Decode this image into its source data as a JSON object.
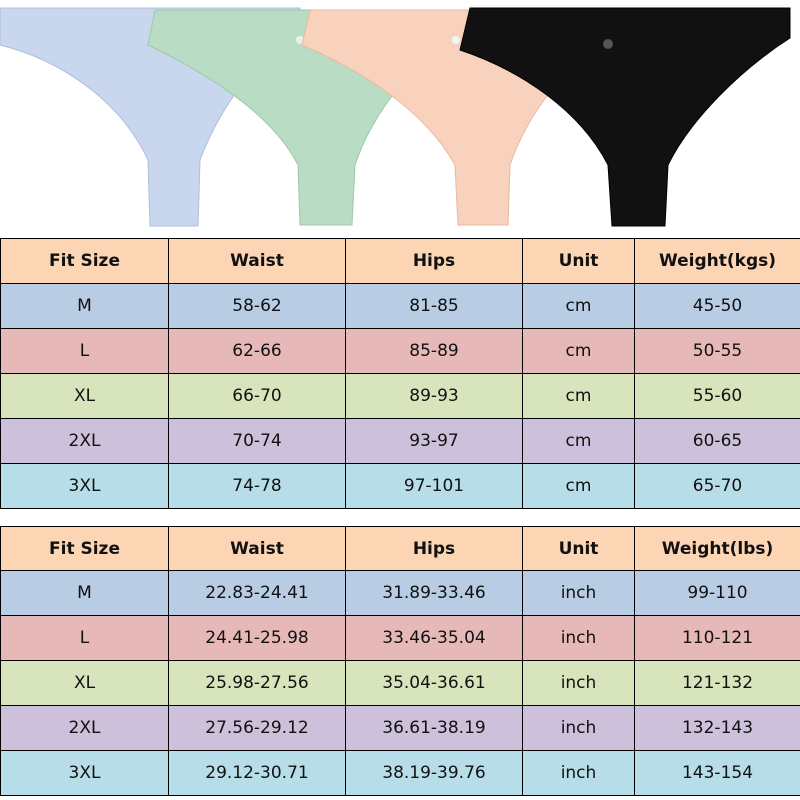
{
  "products": {
    "colors": [
      "#c8d6ee",
      "#b9dcc4",
      "#f9d2bd",
      "#111111"
    ],
    "icon": "underwear-image"
  },
  "tables": [
    {
      "headers": [
        "Fit Size",
        "Waist",
        "Hips",
        "Unit",
        "Weight(kgs)"
      ],
      "rows": [
        [
          "M",
          "58-62",
          "81-85",
          "cm",
          "45-50"
        ],
        [
          "L",
          "62-66",
          "85-89",
          "cm",
          "50-55"
        ],
        [
          "XL",
          "66-70",
          "89-93",
          "cm",
          "55-60"
        ],
        [
          "2XL",
          "70-74",
          "93-97",
          "cm",
          "60-65"
        ],
        [
          "3XL",
          "74-78",
          "97-101",
          "cm",
          "65-70"
        ]
      ]
    },
    {
      "headers": [
        "Fit Size",
        "Waist",
        "Hips",
        "Unit",
        "Weight(lbs)"
      ],
      "rows": [
        [
          "M",
          "22.83-24.41",
          "31.89-33.46",
          "inch",
          "99-110"
        ],
        [
          "L",
          "24.41-25.98",
          "33.46-35.04",
          "inch",
          "110-121"
        ],
        [
          "XL",
          "25.98-27.56",
          "35.04-36.61",
          "inch",
          "121-132"
        ],
        [
          "2XL",
          "27.56-29.12",
          "36.61-38.19",
          "inch",
          "132-143"
        ],
        [
          "3XL",
          "29.12-30.71",
          "38.19-39.76",
          "inch",
          "143-154"
        ]
      ]
    }
  ],
  "row_colors": {
    "header": "#fcd5b4",
    "M": "#b8cce4",
    "L": "#e6b8b7",
    "XL": "#d8e4bc",
    "2XL": "#ccc0da",
    "3XL": "#b7dee8"
  }
}
